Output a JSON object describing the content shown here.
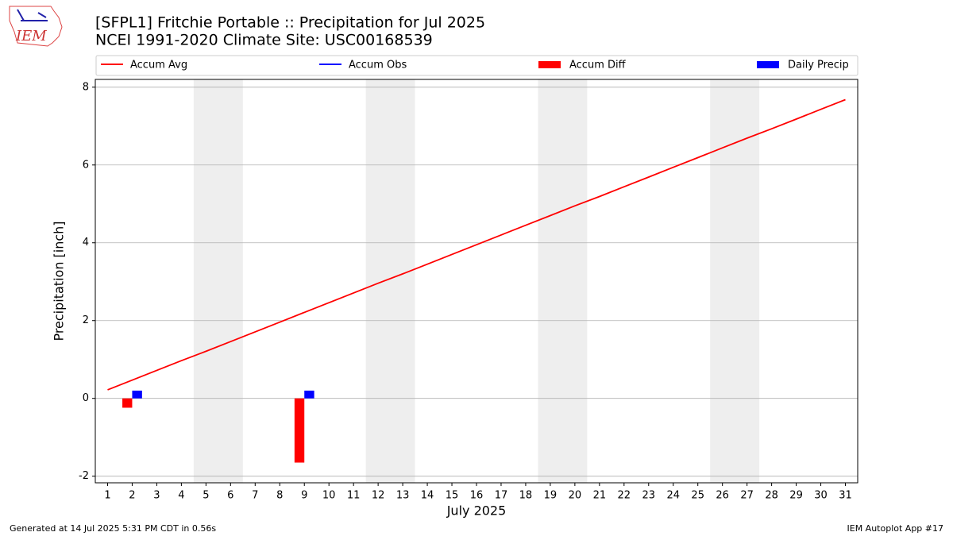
{
  "logo": "IEM",
  "chart_data": {
    "type": "combo",
    "title": "[SFPL1] Fritchie Portable :: Precipitation for Jul 2025",
    "subtitle": "NCEI 1991-2020 Climate Site: USC00168539",
    "x_label": "July 2025",
    "y_label": "Precipitation [inch]",
    "footer_left": "Generated at 14 Jul 2025 5:31 PM CDT in 0.56s",
    "footer_right": "IEM Autoplot App #17",
    "x": [
      1,
      2,
      3,
      4,
      5,
      6,
      7,
      8,
      9,
      10,
      11,
      12,
      13,
      14,
      15,
      16,
      17,
      18,
      19,
      20,
      21,
      22,
      23,
      24,
      25,
      26,
      27,
      28,
      29,
      30,
      31
    ],
    "series": [
      {
        "name": "Accum Avg",
        "type": "line",
        "color": "#ff0000",
        "values": [
          0.22,
          0.47,
          0.72,
          0.97,
          1.21,
          1.46,
          1.71,
          1.96,
          2.21,
          2.46,
          2.71,
          2.96,
          3.2,
          3.45,
          3.7,
          3.95,
          4.2,
          4.45,
          4.7,
          4.95,
          5.19,
          5.44,
          5.69,
          5.94,
          6.19,
          6.44,
          6.69,
          6.93,
          7.18,
          7.43,
          7.68
        ]
      },
      {
        "name": "Accum Obs",
        "type": "line",
        "color": "#0000ff",
        "values": [
          null,
          null,
          null,
          null,
          null,
          null,
          null,
          null,
          null,
          null,
          null,
          null,
          null,
          null,
          null,
          null,
          null,
          null,
          null,
          null,
          null,
          null,
          null,
          null,
          null,
          null,
          null,
          null,
          null,
          null,
          null
        ]
      },
      {
        "name": "Accum Diff",
        "type": "bar",
        "color": "#ff0000",
        "values": [
          null,
          -0.24,
          null,
          null,
          null,
          null,
          null,
          null,
          -1.65,
          null,
          null,
          null,
          null,
          null,
          null,
          null,
          null,
          null,
          null,
          null,
          null,
          null,
          null,
          null,
          null,
          null,
          null,
          null,
          null,
          null,
          null
        ]
      },
      {
        "name": "Daily Precip",
        "type": "bar",
        "color": "#0000ff",
        "values": [
          null,
          0.2,
          null,
          null,
          null,
          null,
          null,
          null,
          0.2,
          null,
          null,
          null,
          null,
          null,
          null,
          null,
          null,
          null,
          null,
          null,
          null,
          null,
          null,
          null,
          null,
          null,
          null,
          null,
          null,
          null,
          null
        ]
      }
    ],
    "shaded_ranges": [
      [
        4.5,
        6.5
      ],
      [
        11.5,
        13.5
      ],
      [
        18.5,
        20.5
      ],
      [
        25.5,
        27.5
      ]
    ],
    "shade_color": "#eeeeee",
    "xlim": [
      0.5,
      31.5
    ],
    "xticks": [
      1,
      2,
      3,
      4,
      5,
      6,
      7,
      8,
      9,
      10,
      11,
      12,
      13,
      14,
      15,
      16,
      17,
      18,
      19,
      20,
      21,
      22,
      23,
      24,
      25,
      26,
      27,
      28,
      29,
      30,
      31
    ],
    "ylim": [
      -2.17,
      8.2
    ],
    "yticks": [
      -2,
      0,
      2,
      4,
      6,
      8
    ],
    "grid": true,
    "legend": "top"
  }
}
